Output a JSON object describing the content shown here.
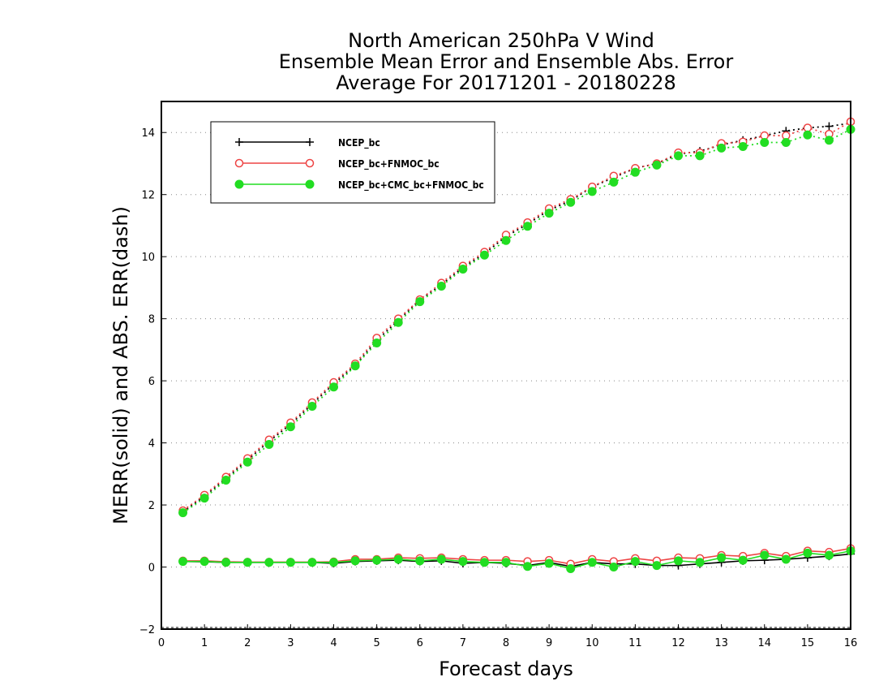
{
  "chart_data": {
    "type": "line",
    "title_lines": [
      "North American 250hPa V Wind",
      "Ensemble Mean Error and Ensemble Abs. Error",
      "Average For 20171201 - 20180228"
    ],
    "xlabel": "Forecast days",
    "ylabel": "MERR(solid) and ABS. ERR(dash)",
    "xlim": [
      0,
      16
    ],
    "ylim": [
      -2,
      15
    ],
    "xticks": [
      0,
      1,
      2,
      3,
      4,
      5,
      6,
      7,
      8,
      9,
      10,
      11,
      12,
      13,
      14,
      15,
      16
    ],
    "yticks": [
      -2,
      0,
      2,
      4,
      6,
      8,
      10,
      12,
      14
    ],
    "grid": "horizontal-dotted",
    "legend_position": "top-left",
    "x": [
      0.5,
      1,
      1.5,
      2,
      2.5,
      3,
      3.5,
      4,
      4.5,
      5,
      5.5,
      6,
      6.5,
      7,
      7.5,
      8,
      8.5,
      9,
      9.5,
      10,
      10.5,
      11,
      11.5,
      12,
      12.5,
      13,
      13.5,
      14,
      14.5,
      15,
      15.5,
      16
    ],
    "series": [
      {
        "name": "NCEP_bc",
        "color": "#000000",
        "marker": "plus",
        "abs_err": [
          1.78,
          2.28,
          2.85,
          3.45,
          4.05,
          4.6,
          5.25,
          5.9,
          6.5,
          7.3,
          7.95,
          8.6,
          9.1,
          9.65,
          10.1,
          10.65,
          11.05,
          11.5,
          11.8,
          12.25,
          12.55,
          12.85,
          13.0,
          13.3,
          13.4,
          13.6,
          13.75,
          13.9,
          14.05,
          14.15,
          14.2,
          14.3
        ],
        "merr": [
          0.18,
          0.17,
          0.15,
          0.15,
          0.15,
          0.15,
          0.15,
          0.12,
          0.18,
          0.2,
          0.22,
          0.18,
          0.2,
          0.12,
          0.15,
          0.12,
          0.05,
          0.15,
          0.02,
          0.15,
          0.1,
          0.1,
          0.05,
          0.05,
          0.1,
          0.15,
          0.2,
          0.22,
          0.25,
          0.3,
          0.35,
          0.42
        ]
      },
      {
        "name": "NCEP_bc+FNMOC_bc",
        "color": "#ee4444",
        "marker": "open-circle",
        "abs_err": [
          1.82,
          2.32,
          2.9,
          3.5,
          4.1,
          4.65,
          5.3,
          5.95,
          6.55,
          7.38,
          8.0,
          8.62,
          9.15,
          9.7,
          10.15,
          10.7,
          11.1,
          11.55,
          11.85,
          12.25,
          12.6,
          12.85,
          13.0,
          13.35,
          13.35,
          13.65,
          13.7,
          13.9,
          13.9,
          14.15,
          13.95,
          14.35
        ],
        "merr": [
          0.2,
          0.2,
          0.17,
          0.16,
          0.16,
          0.16,
          0.16,
          0.17,
          0.25,
          0.25,
          0.3,
          0.28,
          0.3,
          0.25,
          0.22,
          0.22,
          0.18,
          0.22,
          0.1,
          0.25,
          0.18,
          0.28,
          0.2,
          0.3,
          0.28,
          0.38,
          0.35,
          0.45,
          0.35,
          0.52,
          0.48,
          0.6
        ]
      },
      {
        "name": "NCEP_bc+CMC_bc+FNMOC_bc",
        "color": "#22dd22",
        "marker": "filled-circle",
        "abs_err": [
          1.75,
          2.22,
          2.8,
          3.38,
          3.95,
          4.52,
          5.18,
          5.8,
          6.48,
          7.22,
          7.88,
          8.55,
          9.05,
          9.6,
          10.05,
          10.52,
          10.98,
          11.4,
          11.75,
          12.1,
          12.4,
          12.72,
          12.95,
          13.25,
          13.25,
          13.5,
          13.55,
          13.68,
          13.68,
          13.92,
          13.75,
          14.1
        ],
        "merr": [
          0.18,
          0.18,
          0.15,
          0.15,
          0.15,
          0.15,
          0.15,
          0.15,
          0.2,
          0.22,
          0.25,
          0.2,
          0.25,
          0.18,
          0.15,
          0.15,
          0.02,
          0.12,
          -0.05,
          0.15,
          0.0,
          0.18,
          0.05,
          0.2,
          0.15,
          0.3,
          0.22,
          0.38,
          0.25,
          0.45,
          0.38,
          0.52
        ]
      }
    ]
  }
}
